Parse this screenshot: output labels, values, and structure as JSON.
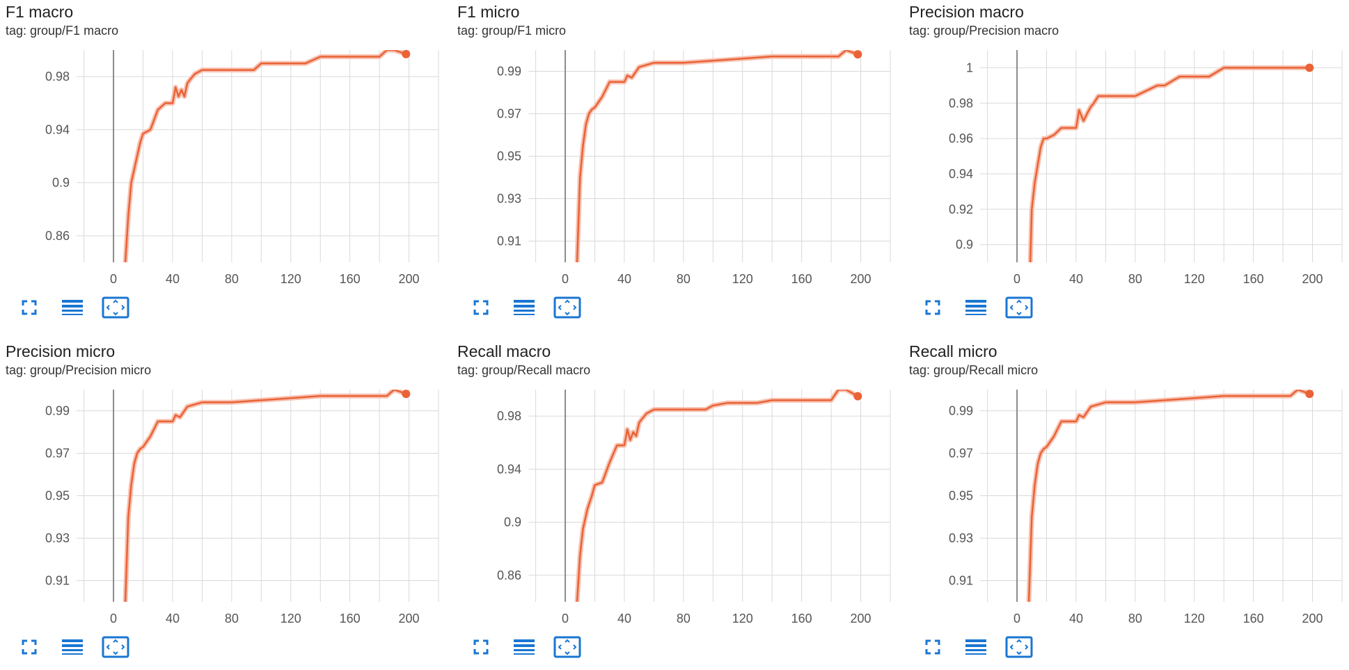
{
  "colors": {
    "series": "#ea6236",
    "series_faint": "#f7c2b1",
    "grid": "#d9d9d9",
    "axis_zero": "#8a8a8a",
    "tick_text": "#555555",
    "icon": "#1976d2"
  },
  "toolbar_icons": [
    "fullscreen-icon",
    "lines-icon",
    "fit-domain-icon"
  ],
  "cards": [
    {
      "title": "F1 macro",
      "tag": "tag: group/F1 macro"
    },
    {
      "title": "F1 micro",
      "tag": "tag: group/F1 micro"
    },
    {
      "title": "Precision macro",
      "tag": "tag: group/Precision macro"
    },
    {
      "title": "Precision micro",
      "tag": "tag: group/Precision micro"
    },
    {
      "title": "Recall macro",
      "tag": "tag: group/Recall macro"
    },
    {
      "title": "Recall micro",
      "tag": "tag: group/Recall micro"
    }
  ],
  "chart_data": [
    {
      "type": "line",
      "title": "F1 macro",
      "xlabel": "",
      "ylabel": "",
      "xlim": [
        -25,
        220
      ],
      "ylim": [
        0.84,
        1.0
      ],
      "grid": true,
      "x_ticks": [
        0,
        40,
        80,
        120,
        160,
        200
      ],
      "y_ticks": [
        0.86,
        0.9,
        0.94,
        0.98
      ],
      "y_tick_labels": [
        "0.86",
        "0.9",
        "0.94",
        "0.98"
      ],
      "series": [
        {
          "x": [
            8,
            10,
            12,
            15,
            18,
            20,
            25,
            30,
            35,
            40,
            42,
            44,
            46,
            48,
            50,
            52,
            55,
            60,
            80,
            95,
            100,
            110,
            120,
            130,
            140,
            150,
            160,
            170,
            180,
            185,
            190,
            198
          ],
          "y": [
            0.84,
            0.875,
            0.9,
            0.915,
            0.93,
            0.937,
            0.94,
            0.955,
            0.96,
            0.96,
            0.972,
            0.965,
            0.97,
            0.965,
            0.975,
            0.978,
            0.982,
            0.985,
            0.985,
            0.985,
            0.99,
            0.99,
            0.99,
            0.99,
            0.995,
            0.995,
            0.995,
            0.995,
            0.995,
            1.0,
            1.0,
            0.997
          ]
        }
      ]
    },
    {
      "type": "line",
      "title": "F1 micro",
      "xlabel": "",
      "ylabel": "",
      "xlim": [
        -25,
        220
      ],
      "ylim": [
        0.9,
        1.0
      ],
      "grid": true,
      "x_ticks": [
        0,
        40,
        80,
        120,
        160,
        200
      ],
      "y_ticks": [
        0.91,
        0.93,
        0.95,
        0.97,
        0.99
      ],
      "y_tick_labels": [
        "0.91",
        "0.93",
        "0.95",
        "0.97",
        "0.99"
      ],
      "series": [
        {
          "x": [
            8,
            9,
            10,
            12,
            14,
            16,
            18,
            20,
            25,
            30,
            35,
            40,
            42,
            45,
            48,
            50,
            55,
            60,
            80,
            100,
            120,
            140,
            160,
            185,
            190,
            198
          ],
          "y": [
            0.9,
            0.92,
            0.94,
            0.955,
            0.965,
            0.97,
            0.972,
            0.973,
            0.978,
            0.985,
            0.985,
            0.985,
            0.988,
            0.987,
            0.99,
            0.992,
            0.993,
            0.994,
            0.994,
            0.995,
            0.996,
            0.997,
            0.997,
            0.997,
            1.0,
            0.998
          ]
        }
      ]
    },
    {
      "type": "line",
      "title": "Precision macro",
      "xlabel": "",
      "ylabel": "",
      "xlim": [
        -25,
        220
      ],
      "ylim": [
        0.89,
        1.01
      ],
      "grid": true,
      "x_ticks": [
        0,
        40,
        80,
        120,
        160,
        200
      ],
      "y_ticks": [
        0.9,
        0.92,
        0.94,
        0.96,
        0.98,
        1.0
      ],
      "y_tick_labels": [
        "0.9",
        "0.92",
        "0.94",
        "0.96",
        "0.98",
        "1"
      ],
      "series": [
        {
          "x": [
            9,
            10,
            12,
            14,
            16,
            18,
            20,
            25,
            30,
            35,
            40,
            42,
            45,
            48,
            50,
            52,
            55,
            60,
            80,
            95,
            100,
            110,
            120,
            130,
            140,
            150,
            160,
            180,
            198
          ],
          "y": [
            0.89,
            0.92,
            0.935,
            0.945,
            0.955,
            0.96,
            0.96,
            0.962,
            0.966,
            0.966,
            0.966,
            0.976,
            0.97,
            0.975,
            0.978,
            0.98,
            0.984,
            0.984,
            0.984,
            0.99,
            0.99,
            0.995,
            0.995,
            0.995,
            1.0,
            1.0,
            1.0,
            1.0,
            1.0
          ]
        }
      ]
    },
    {
      "type": "line",
      "title": "Precision micro",
      "xlabel": "",
      "ylabel": "",
      "xlim": [
        -25,
        220
      ],
      "ylim": [
        0.9,
        1.0
      ],
      "grid": true,
      "x_ticks": [
        0,
        40,
        80,
        120,
        160,
        200
      ],
      "y_ticks": [
        0.91,
        0.93,
        0.95,
        0.97,
        0.99
      ],
      "y_tick_labels": [
        "0.91",
        "0.93",
        "0.95",
        "0.97",
        "0.99"
      ],
      "series": [
        {
          "x": [
            8,
            9,
            10,
            12,
            14,
            16,
            18,
            20,
            25,
            30,
            35,
            40,
            42,
            45,
            48,
            50,
            55,
            60,
            80,
            100,
            120,
            140,
            160,
            185,
            190,
            198
          ],
          "y": [
            0.9,
            0.92,
            0.94,
            0.955,
            0.965,
            0.97,
            0.972,
            0.973,
            0.978,
            0.985,
            0.985,
            0.985,
            0.988,
            0.987,
            0.99,
            0.992,
            0.993,
            0.994,
            0.994,
            0.995,
            0.996,
            0.997,
            0.997,
            0.997,
            1.0,
            0.998
          ]
        }
      ]
    },
    {
      "type": "line",
      "title": "Recall macro",
      "xlabel": "",
      "ylabel": "",
      "xlim": [
        -25,
        220
      ],
      "ylim": [
        0.84,
        1.0
      ],
      "grid": true,
      "x_ticks": [
        0,
        40,
        80,
        120,
        160,
        200
      ],
      "y_ticks": [
        0.86,
        0.9,
        0.94,
        0.98
      ],
      "y_tick_labels": [
        "0.86",
        "0.9",
        "0.94",
        "0.98"
      ],
      "series": [
        {
          "x": [
            8,
            10,
            12,
            15,
            18,
            20,
            25,
            30,
            35,
            40,
            42,
            44,
            46,
            48,
            50,
            52,
            55,
            60,
            80,
            95,
            100,
            110,
            120,
            130,
            140,
            150,
            160,
            170,
            180,
            185,
            190,
            198
          ],
          "y": [
            0.84,
            0.875,
            0.895,
            0.91,
            0.92,
            0.928,
            0.93,
            0.945,
            0.958,
            0.958,
            0.97,
            0.962,
            0.968,
            0.965,
            0.975,
            0.978,
            0.982,
            0.985,
            0.985,
            0.985,
            0.988,
            0.99,
            0.99,
            0.99,
            0.992,
            0.992,
            0.992,
            0.992,
            0.992,
            1.0,
            1.0,
            0.995
          ]
        }
      ]
    },
    {
      "type": "line",
      "title": "Recall micro",
      "xlabel": "",
      "ylabel": "",
      "xlim": [
        -25,
        220
      ],
      "ylim": [
        0.9,
        1.0
      ],
      "grid": true,
      "x_ticks": [
        0,
        40,
        80,
        120,
        160,
        200
      ],
      "y_ticks": [
        0.91,
        0.93,
        0.95,
        0.97,
        0.99
      ],
      "y_tick_labels": [
        "0.91",
        "0.93",
        "0.95",
        "0.97",
        "0.99"
      ],
      "series": [
        {
          "x": [
            8,
            9,
            10,
            12,
            14,
            16,
            18,
            20,
            25,
            30,
            35,
            40,
            42,
            45,
            48,
            50,
            55,
            60,
            80,
            100,
            120,
            140,
            160,
            185,
            190,
            198
          ],
          "y": [
            0.9,
            0.92,
            0.94,
            0.955,
            0.965,
            0.97,
            0.972,
            0.973,
            0.978,
            0.985,
            0.985,
            0.985,
            0.988,
            0.987,
            0.99,
            0.992,
            0.993,
            0.994,
            0.994,
            0.995,
            0.996,
            0.997,
            0.997,
            0.997,
            1.0,
            0.998
          ]
        }
      ]
    }
  ]
}
